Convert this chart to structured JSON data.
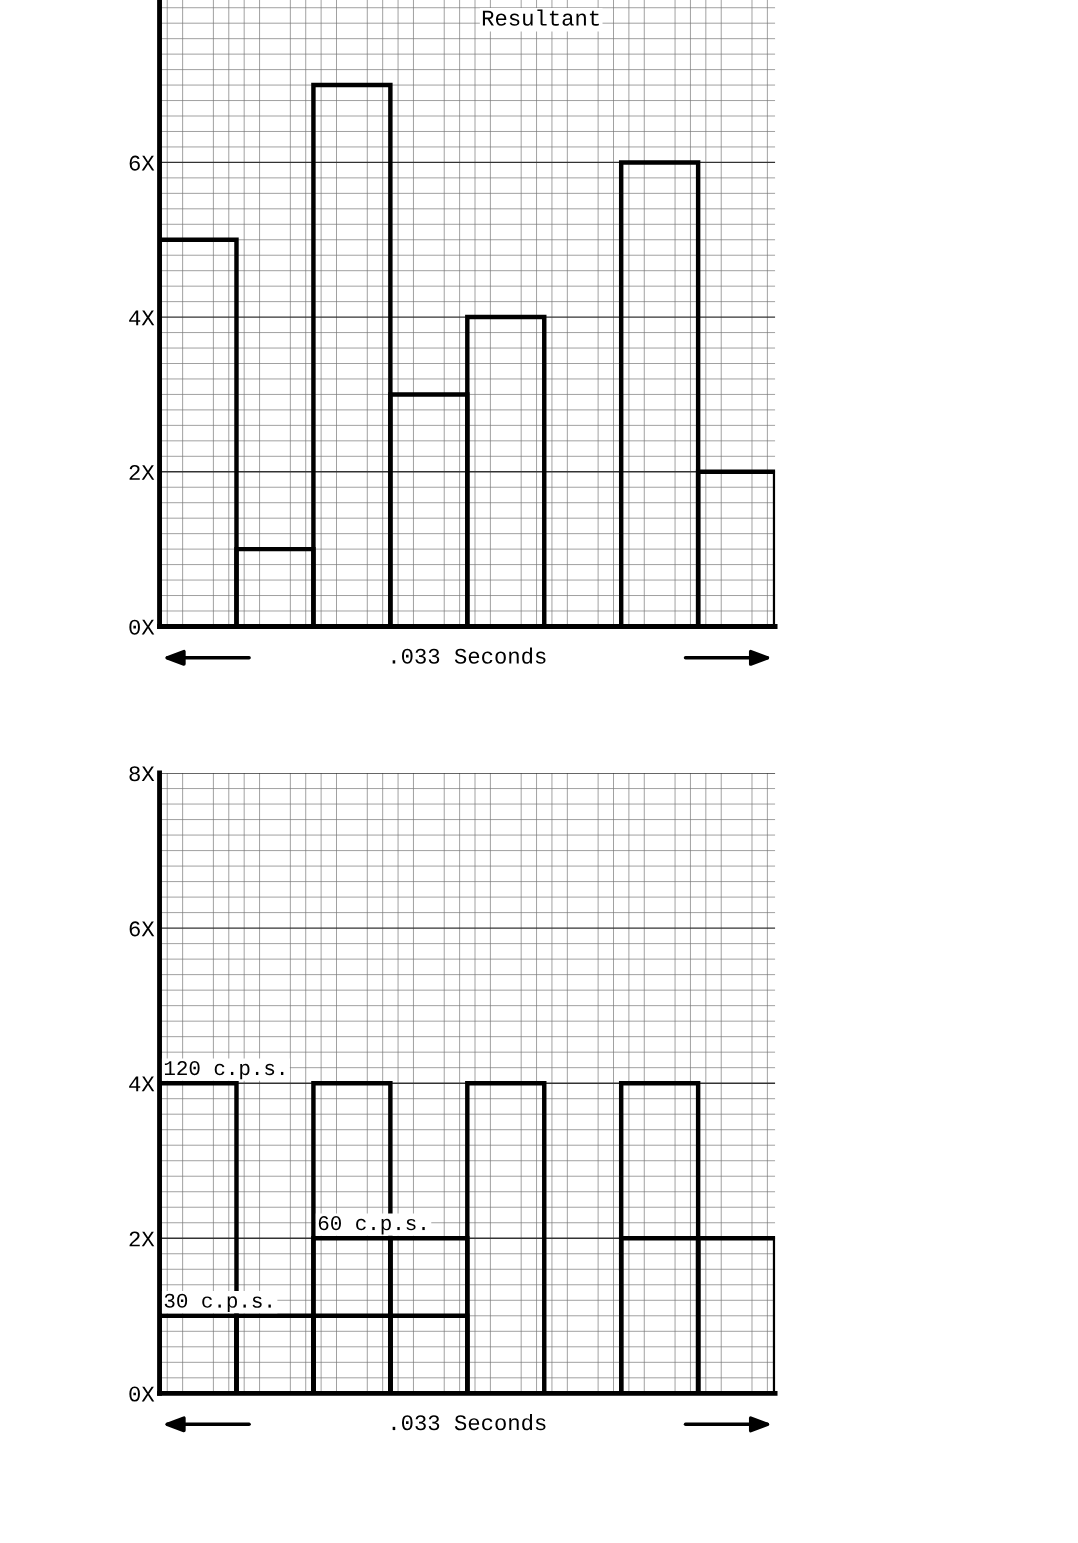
{
  "chart_data": [
    {
      "type": "bar",
      "title": "Resultant",
      "categories": [
        null,
        null,
        null,
        null,
        null,
        null,
        null,
        null
      ],
      "values": [
        5,
        1,
        7,
        3,
        4,
        0,
        6,
        2
      ],
      "color": "#000000",
      "ylim": [
        0,
        8.1
      ],
      "yticks": [
        {
          "value": 0,
          "label": "0X"
        },
        {
          "value": 2,
          "label": "2X"
        },
        {
          "value": 4,
          "label": "4X"
        },
        {
          "value": 6,
          "label": "6X"
        }
      ],
      "annotations": [
        ".033 Seconds"
      ],
      "grid": true,
      "legend": false
    },
    {
      "type": "bar",
      "categories": [
        null,
        null,
        null,
        null,
        null,
        null,
        null,
        null
      ],
      "series": [
        {
          "name": "120 c.p.s.",
          "color": "#000000",
          "values": [
            4,
            0,
            4,
            0,
            4,
            0,
            4,
            0
          ]
        },
        {
          "name": "60 c.p.s.",
          "color": "#000000",
          "values": [
            0,
            0,
            2,
            2,
            0,
            0,
            2,
            2
          ]
        },
        {
          "name": "30 c.p.s.",
          "color": "#000000",
          "values": [
            1,
            1,
            1,
            1,
            0,
            0,
            0,
            0
          ]
        }
      ],
      "ylim": [
        0,
        8
      ],
      "yticks": [
        {
          "value": 0,
          "label": "0X"
        },
        {
          "value": 2,
          "label": "2X"
        },
        {
          "value": 4,
          "label": "4X"
        },
        {
          "value": 6,
          "label": "6X"
        },
        {
          "value": 8,
          "label": "8X"
        }
      ],
      "annotations": [
        ".033 Seconds"
      ],
      "grid": true,
      "legend": false
    }
  ]
}
